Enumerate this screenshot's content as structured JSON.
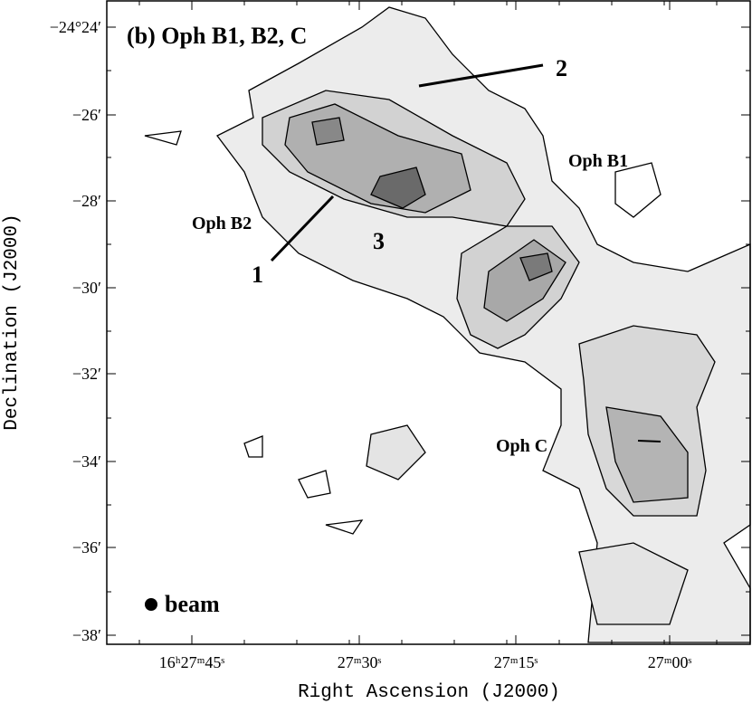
{
  "panel_title": "(b) Oph B1, B2, C",
  "x_axis": {
    "label": "Right Ascension (J2000)",
    "ticks": [
      "16ʰ27ᵐ45ˢ",
      "27ᵐ30ˢ",
      "27ᵐ15ˢ",
      "27ᵐ00ˢ"
    ]
  },
  "y_axis": {
    "label": "Declination (J2000)",
    "ticks": [
      "−24°24′",
      "−26′",
      "−28′",
      "−30′",
      "−32′",
      "−34′",
      "−36′",
      "−38′"
    ]
  },
  "annotations": {
    "oph_b1": "Oph B1",
    "oph_b2": "Oph B2",
    "oph_c": "Oph C",
    "marker_1": "1",
    "marker_2": "2",
    "marker_3": "3",
    "beam": "beam"
  }
}
